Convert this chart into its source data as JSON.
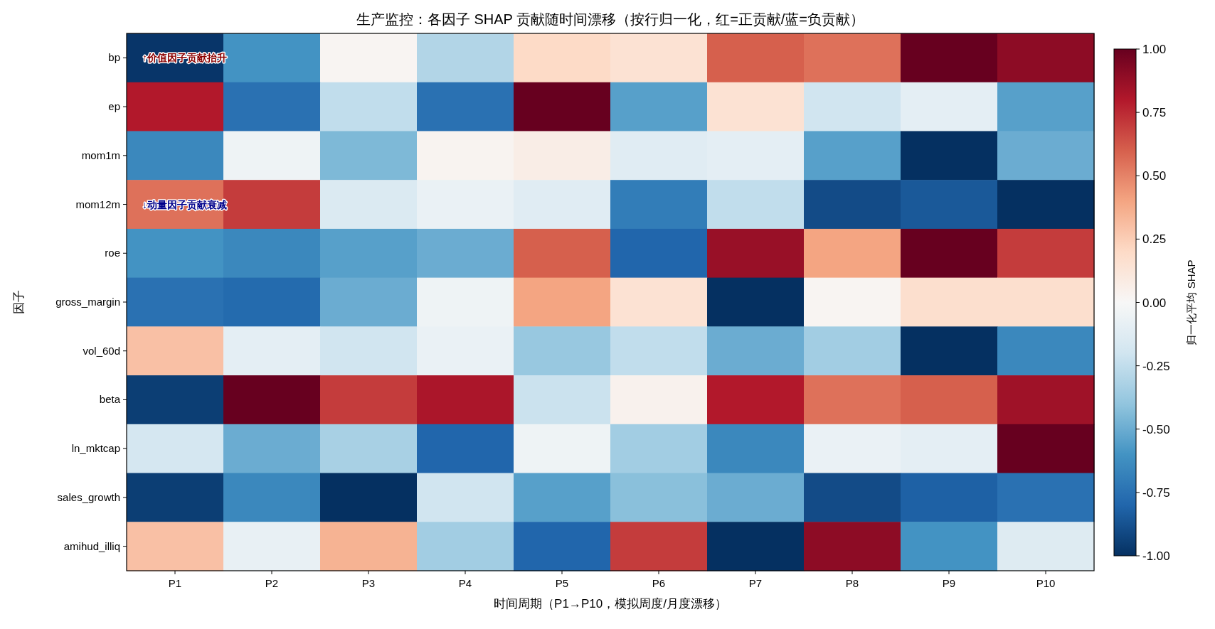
{
  "chart_data": {
    "type": "heatmap",
    "title": "生产监控：各因子 SHAP 贡献随时间漂移（按行归一化，红=正贡献/蓝=负贡献）",
    "xlabel": "时间周期（P1→P10，模拟周度/月度漂移）",
    "ylabel": "因子",
    "clabel": "归一化平均 SHAP",
    "categories": [
      "P1",
      "P2",
      "P3",
      "P4",
      "P5",
      "P6",
      "P7",
      "P8",
      "P9",
      "P10"
    ],
    "y_categories": [
      "bp",
      "ep",
      "mom1m",
      "mom12m",
      "roe",
      "gross_margin",
      "vol_60d",
      "beta",
      "ln_mktcap",
      "sales_growth",
      "amihud_illiq"
    ],
    "cells": [
      [
        -0.98,
        -0.6,
        0.02,
        -0.3,
        0.2,
        0.15,
        0.6,
        0.55,
        1.0,
        0.9
      ],
      [
        0.8,
        -0.75,
        -0.25,
        -0.75,
        1.0,
        -0.55,
        0.15,
        -0.2,
        -0.1,
        -0.55
      ],
      [
        -0.65,
        -0.05,
        -0.45,
        0.03,
        0.07,
        -0.12,
        -0.1,
        -0.55,
        -1.0,
        -0.5
      ],
      [
        0.55,
        0.7,
        -0.15,
        -0.07,
        -0.12,
        -0.7,
        -0.25,
        -0.9,
        -0.85,
        -1.0
      ],
      [
        -0.6,
        -0.65,
        -0.55,
        -0.5,
        0.6,
        -0.8,
        0.87,
        0.4,
        1.0,
        0.7
      ],
      [
        -0.75,
        -0.78,
        -0.5,
        -0.05,
        0.4,
        0.15,
        -1.0,
        0.02,
        0.17,
        0.17
      ],
      [
        0.3,
        -0.1,
        -0.2,
        -0.07,
        -0.38,
        -0.25,
        -0.5,
        -0.35,
        -1.0,
        -0.65
      ],
      [
        -0.95,
        1.0,
        0.7,
        0.82,
        -0.22,
        0.04,
        0.8,
        0.55,
        0.6,
        0.85
      ],
      [
        -0.18,
        -0.5,
        -0.33,
        -0.8,
        -0.05,
        -0.35,
        -0.65,
        -0.07,
        -0.1,
        1.0
      ],
      [
        -0.95,
        -0.65,
        -1.0,
        -0.2,
        -0.55,
        -0.42,
        -0.5,
        -0.9,
        -0.82,
        -0.75
      ],
      [
        0.3,
        -0.08,
        0.35,
        -0.35,
        -0.8,
        0.7,
        -1.0,
        0.9,
        -0.6,
        -0.13
      ]
    ],
    "clim": [
      -1,
      1
    ],
    "cticks": [
      {
        "value": -1,
        "label": "-1.00"
      },
      {
        "value": -0.75,
        "label": "-0.75"
      },
      {
        "value": -0.5,
        "label": "-0.50"
      },
      {
        "value": -0.25,
        "label": "-0.25"
      },
      {
        "value": 0,
        "label": "0.00"
      },
      {
        "value": 0.25,
        "label": "0.25"
      },
      {
        "value": 0.5,
        "label": "0.50"
      },
      {
        "value": 0.75,
        "label": "0.75"
      },
      {
        "value": 1,
        "label": "1.00"
      }
    ],
    "annotations": [
      "↑价值因子贡献抬升",
      "↓动量因子贡献衰减"
    ]
  }
}
